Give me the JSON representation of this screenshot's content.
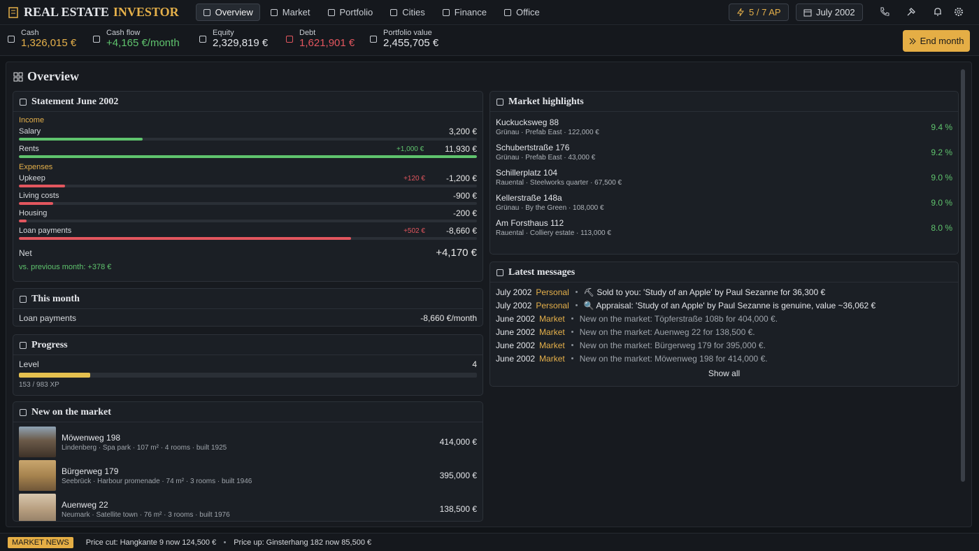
{
  "app": {
    "title": "REAL ESTATE",
    "title_accent": "INVESTOR"
  },
  "nav": [
    "Overview",
    "Market",
    "Portfolio",
    "Cities",
    "Finance",
    "Office"
  ],
  "action_points": "5 / 7 AP",
  "date": "July 2002",
  "stats": [
    {
      "label": "Cash",
      "value": "1,326,015 €"
    },
    {
      "label": "Cash flow",
      "value": "+4,165 €/month"
    },
    {
      "label": "Equity",
      "value": "2,329,819 €"
    },
    {
      "label": "Debt",
      "value": "1,621,901 €"
    },
    {
      "label": "Portfolio value",
      "value": "2,455,705 €"
    }
  ],
  "end_month": "End month",
  "page_title": "Overview",
  "statement": {
    "title": "Statement June 2002",
    "income_label": "Income",
    "income": [
      {
        "label": "Salary",
        "value": "3,200 €"
      },
      {
        "label": "Rents",
        "change": "+1,000 €",
        "value": "11,930 €"
      }
    ],
    "expenses_label": "Expenses",
    "expenses": [
      {
        "label": "Upkeep",
        "change": "+120 €",
        "value": "-1,200 €"
      },
      {
        "label": "Living costs",
        "value": "-900 €"
      },
      {
        "label": "Housing",
        "value": "-200 €"
      },
      {
        "label": "Loan payments",
        "change": "+502 €",
        "value": "-8,660 €"
      }
    ],
    "net_label": "Net",
    "net": "+4,170 €",
    "comparison": "vs. previous month: +378 €"
  },
  "this_month": {
    "title": "This month",
    "items": [
      {
        "label": "Loan payments",
        "value": "-8,660 €/month"
      }
    ]
  },
  "progress": {
    "title": "Progress",
    "level_label": "Level",
    "level": 4,
    "xp": "153 / 983 XP"
  },
  "new_on_market": {
    "title": "New on the market",
    "listings": [
      {
        "name": "Möwenweg 198",
        "details": "Lindenberg · Spa park · 107 m² · 4 rooms · built 1925",
        "price": "414,000 €"
      },
      {
        "name": "Bürgerweg 179",
        "details": "Seebrück · Harbour promenade · 74 m² · 3 rooms · built 1946",
        "price": "395,000 €"
      },
      {
        "name": "Auenweg 22",
        "details": "Neumark · Satellite town · 76 m² · 3 rooms · built 1976",
        "price": "138,500 €"
      }
    ]
  },
  "market_highlights": {
    "title": "Market highlights",
    "items": [
      {
        "name": "Kuckucksweg 88",
        "details": "Grünau · Prefab East · 122,000 €",
        "yield": "9.4 %"
      },
      {
        "name": "Schubertstraße 176",
        "details": "Grünau · Prefab East · 43,000 €",
        "yield": "9.2 %"
      },
      {
        "name": "Schillerplatz 104",
        "details": "Rauental · Steelworks quarter · 67,500 €",
        "yield": "9.0 %"
      },
      {
        "name": "Kellerstraße 148a",
        "details": "Grünau · By the Green · 108,000 €",
        "yield": "9.0 %"
      },
      {
        "name": "Am Forsthaus 112",
        "details": "Rauental · Colliery estate · 113,000 €",
        "yield": "8.0 %"
      }
    ]
  },
  "messages": {
    "title": "Latest messages",
    "items": [
      {
        "date": "July 2002",
        "category": "Personal",
        "text": "⛏ Sold to you: 'Study of an Apple' by Paul Sezanne for 36,300 €"
      },
      {
        "date": "July 2002",
        "category": "Personal",
        "text": "🔍 Appraisal: 'Study of an Apple' by Paul Sezanne is genuine, value ~36,062 €"
      },
      {
        "date": "June 2002",
        "category": "Market",
        "text": "New on the market: Töpferstraße 108b for 404,000 €."
      },
      {
        "date": "June 2002",
        "category": "Market",
        "text": "New on the market: Auenweg 22 for 138,500 €."
      },
      {
        "date": "June 2002",
        "category": "Market",
        "text": "New on the market: Bürgerweg 179 for 395,000 €."
      },
      {
        "date": "June 2002",
        "category": "Market",
        "text": "New on the market: Möwenweg 198 for 414,000 €."
      }
    ],
    "show_all": "Show all"
  },
  "ticker": {
    "label": "MARKET NEWS",
    "items": [
      "Price cut: Hangkante 9 now 124,500 €",
      "Price up: Ginsterhang 182 now 85,500 €"
    ]
  }
}
